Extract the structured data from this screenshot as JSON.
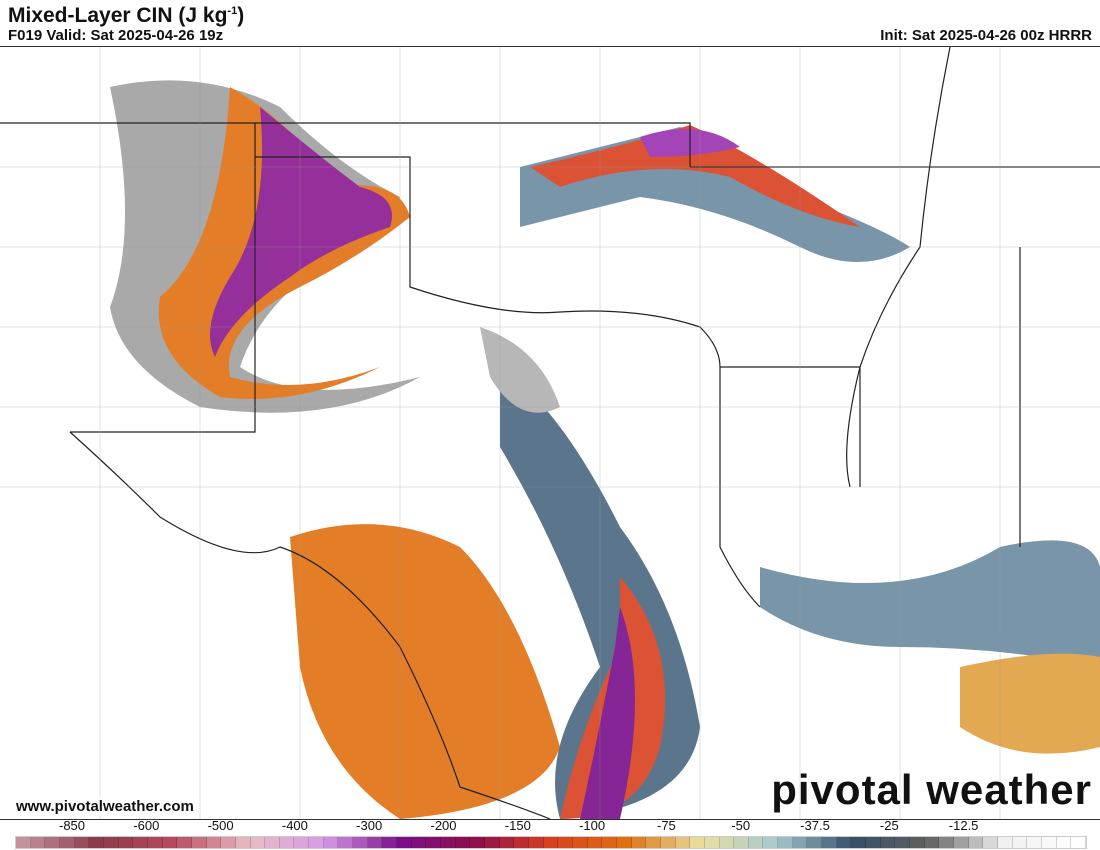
{
  "header": {
    "title": "Mixed-Layer CIN (J kg",
    "title_sup": "-1",
    "title_end": ")",
    "valid": "F019 Valid: Sat 2025-04-26 19z",
    "init": "Init: Sat 2025-04-26 00z HRRR"
  },
  "footer": {
    "url": "www.pivotalweather.com",
    "logo": "pivotal weather"
  },
  "colorbar": {
    "labels": [
      "-850",
      "-600",
      "-500",
      "-400",
      "-300",
      "-200",
      "-150",
      "-100",
      "-75",
      "-50",
      "-37.5",
      "-25",
      "-12.5"
    ],
    "color_stops": [
      "#c4939a",
      "#8b3a4a",
      "#b84a5e",
      "#e8bcc4",
      "#d89ae6",
      "#7a0e8a",
      "#8e0e4a",
      "#d84020",
      "#e07010",
      "#e8e0a0",
      "#a8c8d0",
      "#345068",
      "#606060",
      "#f0f0f0",
      "#ffffff"
    ]
  }
}
